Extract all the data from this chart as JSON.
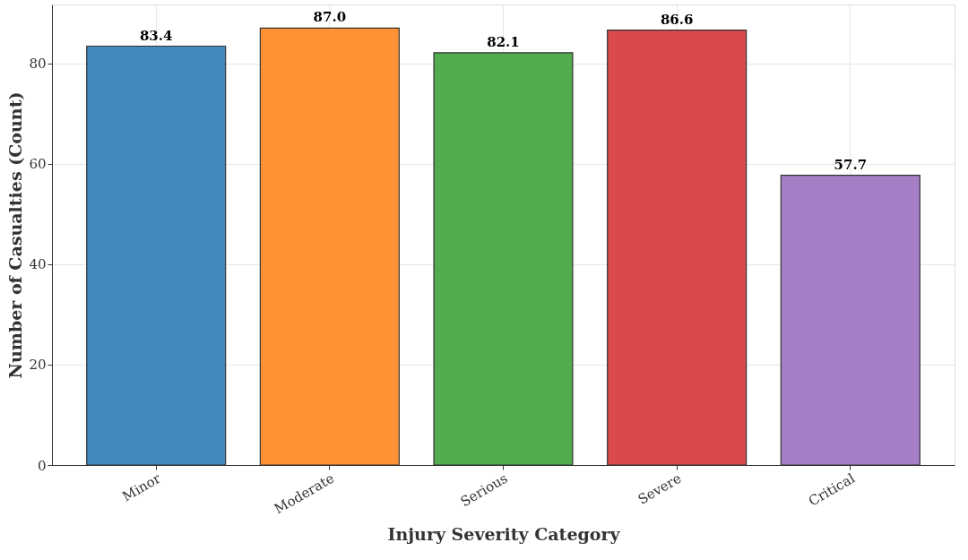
{
  "chart_data": {
    "type": "bar",
    "xlabel": "Injury Severity Category",
    "ylabel": "Number of Casualties (Count)",
    "categories": [
      "Minor",
      "Moderate",
      "Serious",
      "Severe",
      "Critical"
    ],
    "values": [
      83.4,
      87.0,
      82.1,
      86.6,
      57.7
    ],
    "colors": [
      "#4189bf",
      "#fe9234",
      "#50ac4f",
      "#db4a4a",
      "#a57fc6"
    ],
    "ylim": [
      0,
      91.7
    ],
    "yticks": [
      0,
      20,
      40,
      60,
      80
    ],
    "value_labels": [
      "83.4",
      "87.0",
      "82.1",
      "86.6",
      "57.7"
    ],
    "grid": true
  }
}
